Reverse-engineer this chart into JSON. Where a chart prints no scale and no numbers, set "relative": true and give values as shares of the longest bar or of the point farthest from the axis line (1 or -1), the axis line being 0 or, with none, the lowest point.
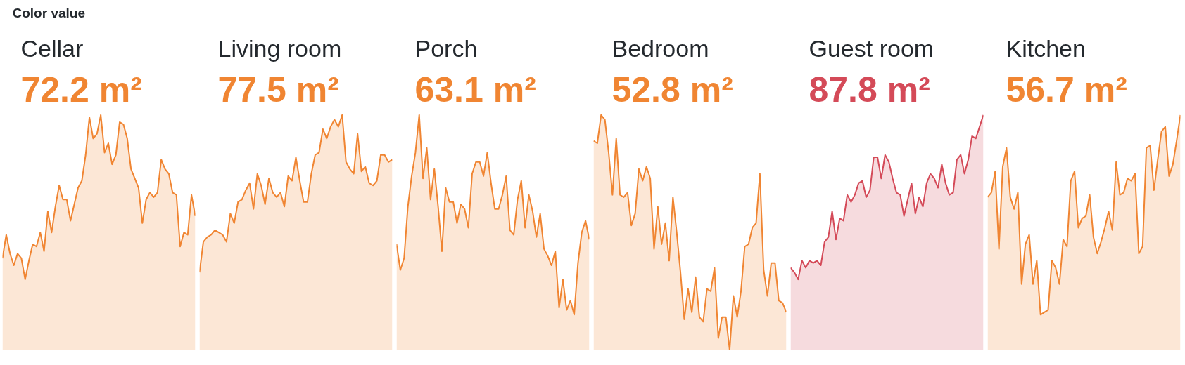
{
  "chart_data": [
    {
      "type": "other",
      "title": "Color value"
    },
    {
      "type": "area",
      "title": "Cellar",
      "annotations": [
        "72.2 m²"
      ],
      "color": "#f08532",
      "relative": true,
      "categories": [
        null,
        null,
        null,
        null,
        null,
        null,
        null,
        null,
        null,
        null,
        null,
        null,
        null,
        null,
        null,
        null,
        null,
        null,
        null,
        null,
        null,
        null,
        null,
        null,
        null,
        null,
        null,
        null,
        null,
        null,
        null,
        null,
        null,
        null,
        null,
        null,
        null,
        null,
        null,
        null,
        null,
        null,
        null,
        null,
        null,
        null,
        null,
        null,
        null,
        null,
        null,
        null
      ],
      "values": [
        0.39,
        0.49,
        0.41,
        0.36,
        0.41,
        0.39,
        0.3,
        0.38,
        0.45,
        0.44,
        0.5,
        0.42,
        0.59,
        0.5,
        0.61,
        0.7,
        0.64,
        0.64,
        0.55,
        0.62,
        0.69,
        0.72,
        0.83,
        0.99,
        0.9,
        0.92,
        1,
        0.84,
        0.88,
        0.79,
        0.83,
        0.97,
        0.96,
        0.9,
        0.77,
        0.73,
        0.69,
        0.54,
        0.64,
        0.67,
        0.65,
        0.67,
        0.81,
        0.77,
        0.75,
        0.67,
        0.66,
        0.44,
        0.5,
        0.49,
        0.66,
        0.57
      ]
    },
    {
      "type": "area",
      "title": "Living room",
      "annotations": [
        "77.5 m²"
      ],
      "color": "#f08532",
      "relative": true,
      "categories": [
        null,
        null,
        null,
        null,
        null,
        null,
        null,
        null,
        null,
        null,
        null,
        null,
        null,
        null,
        null,
        null,
        null,
        null,
        null,
        null,
        null,
        null,
        null,
        null,
        null,
        null,
        null,
        null,
        null,
        null,
        null,
        null,
        null,
        null,
        null,
        null,
        null,
        null,
        null,
        null,
        null,
        null,
        null,
        null,
        null,
        null,
        null,
        null,
        null,
        null,
        null
      ],
      "values": [
        0.33,
        0.46,
        0.48,
        0.49,
        0.51,
        0.5,
        0.49,
        0.46,
        0.58,
        0.54,
        0.63,
        0.64,
        0.68,
        0.71,
        0.6,
        0.75,
        0.7,
        0.62,
        0.73,
        0.67,
        0.65,
        0.67,
        0.61,
        0.74,
        0.72,
        0.82,
        0.72,
        0.63,
        0.63,
        0.75,
        0.83,
        0.84,
        0.94,
        0.9,
        0.95,
        0.98,
        0.95,
        1,
        0.8,
        0.77,
        0.75,
        0.92,
        0.76,
        0.78,
        0.71,
        0.7,
        0.72,
        0.83,
        0.83,
        0.8,
        0.81
      ]
    },
    {
      "type": "area",
      "title": "Porch",
      "annotations": [
        "63.1 m²"
      ],
      "color": "#f08532",
      "relative": true,
      "categories": [
        null,
        null,
        null,
        null,
        null,
        null,
        null,
        null,
        null,
        null,
        null,
        null,
        null,
        null,
        null,
        null,
        null,
        null,
        null,
        null,
        null,
        null,
        null,
        null,
        null,
        null,
        null,
        null,
        null,
        null,
        null,
        null,
        null,
        null,
        null,
        null,
        null,
        null,
        null,
        null,
        null,
        null,
        null,
        null,
        null,
        null,
        null,
        null,
        null,
        null,
        null,
        null
      ],
      "values": [
        0.45,
        0.34,
        0.39,
        0.61,
        0.74,
        0.84,
        1,
        0.73,
        0.86,
        0.64,
        0.77,
        0.61,
        0.42,
        0.69,
        0.63,
        0.63,
        0.54,
        0.62,
        0.6,
        0.52,
        0.75,
        0.8,
        0.8,
        0.74,
        0.84,
        0.71,
        0.6,
        0.6,
        0.66,
        0.74,
        0.51,
        0.49,
        0.64,
        0.72,
        0.52,
        0.66,
        0.59,
        0.48,
        0.58,
        0.43,
        0.4,
        0.36,
        0.42,
        0.18,
        0.3,
        0.17,
        0.21,
        0.15,
        0.37,
        0.5,
        0.55,
        0.47
      ]
    },
    {
      "type": "area",
      "title": "Bedroom",
      "annotations": [
        "52.8 m²"
      ],
      "color": "#f08532",
      "relative": true,
      "categories": [
        null,
        null,
        null,
        null,
        null,
        null,
        null,
        null,
        null,
        null,
        null,
        null,
        null,
        null,
        null,
        null,
        null,
        null,
        null,
        null,
        null,
        null,
        null,
        null,
        null,
        null,
        null,
        null,
        null,
        null,
        null,
        null,
        null,
        null,
        null,
        null,
        null,
        null,
        null,
        null,
        null,
        null,
        null,
        null,
        null,
        null,
        null,
        null,
        null,
        null,
        null,
        null
      ],
      "values": [
        0.89,
        0.88,
        1,
        0.98,
        0.84,
        0.66,
        0.9,
        0.66,
        0.65,
        0.67,
        0.53,
        0.58,
        0.77,
        0.72,
        0.78,
        0.73,
        0.43,
        0.61,
        0.45,
        0.54,
        0.38,
        0.65,
        0.5,
        0.33,
        0.13,
        0.26,
        0.16,
        0.31,
        0.14,
        0.12,
        0.26,
        0.25,
        0.35,
        0.05,
        0.14,
        0.14,
        0,
        0.23,
        0.14,
        0.25,
        0.44,
        0.45,
        0.52,
        0.54,
        0.75,
        0.34,
        0.23,
        0.37,
        0.37,
        0.21,
        0.2,
        0.16
      ]
    },
    {
      "type": "area",
      "title": "Guest room",
      "annotations": [
        "87.8 m²"
      ],
      "color": "#d44a58",
      "relative": true,
      "categories": [
        null,
        null,
        null,
        null,
        null,
        null,
        null,
        null,
        null,
        null,
        null,
        null,
        null,
        null,
        null,
        null,
        null,
        null,
        null,
        null,
        null,
        null,
        null,
        null,
        null,
        null,
        null,
        null,
        null,
        null,
        null,
        null,
        null,
        null,
        null,
        null,
        null,
        null,
        null,
        null,
        null,
        null,
        null,
        null,
        null,
        null,
        null,
        null,
        null,
        null,
        null,
        null
      ],
      "values": [
        0.35,
        0.33,
        0.3,
        0.38,
        0.35,
        0.38,
        0.37,
        0.38,
        0.36,
        0.46,
        0.48,
        0.59,
        0.47,
        0.56,
        0.55,
        0.66,
        0.63,
        0.66,
        0.71,
        0.72,
        0.65,
        0.68,
        0.82,
        0.82,
        0.73,
        0.83,
        0.8,
        0.73,
        0.67,
        0.66,
        0.57,
        0.64,
        0.71,
        0.58,
        0.65,
        0.61,
        0.71,
        0.75,
        0.73,
        0.69,
        0.79,
        0.71,
        0.66,
        0.67,
        0.81,
        0.83,
        0.75,
        0.81,
        0.91,
        0.9,
        0.95,
        1
      ]
    },
    {
      "type": "area",
      "title": "Kitchen",
      "annotations": [
        "56.7 m²"
      ],
      "color": "#f08532",
      "relative": true,
      "categories": [
        null,
        null,
        null,
        null,
        null,
        null,
        null,
        null,
        null,
        null,
        null,
        null,
        null,
        null,
        null,
        null,
        null,
        null,
        null,
        null,
        null,
        null,
        null,
        null,
        null,
        null,
        null,
        null,
        null,
        null,
        null,
        null,
        null,
        null,
        null,
        null,
        null,
        null,
        null,
        null,
        null,
        null,
        null,
        null,
        null,
        null,
        null,
        null,
        null,
        null,
        null,
        null
      ],
      "values": [
        0.65,
        0.67,
        0.76,
        0.43,
        0.78,
        0.86,
        0.65,
        0.6,
        0.67,
        0.28,
        0.45,
        0.49,
        0.28,
        0.38,
        0.15,
        0.16,
        0.17,
        0.38,
        0.35,
        0.28,
        0.47,
        0.44,
        0.72,
        0.76,
        0.52,
        0.56,
        0.57,
        0.66,
        0.48,
        0.41,
        0.46,
        0.52,
        0.59,
        0.51,
        0.8,
        0.66,
        0.67,
        0.73,
        0.72,
        0.75,
        0.41,
        0.44,
        0.86,
        0.87,
        0.68,
        0.81,
        0.93,
        0.95,
        0.74,
        0.79,
        0.89,
        1
      ]
    }
  ]
}
